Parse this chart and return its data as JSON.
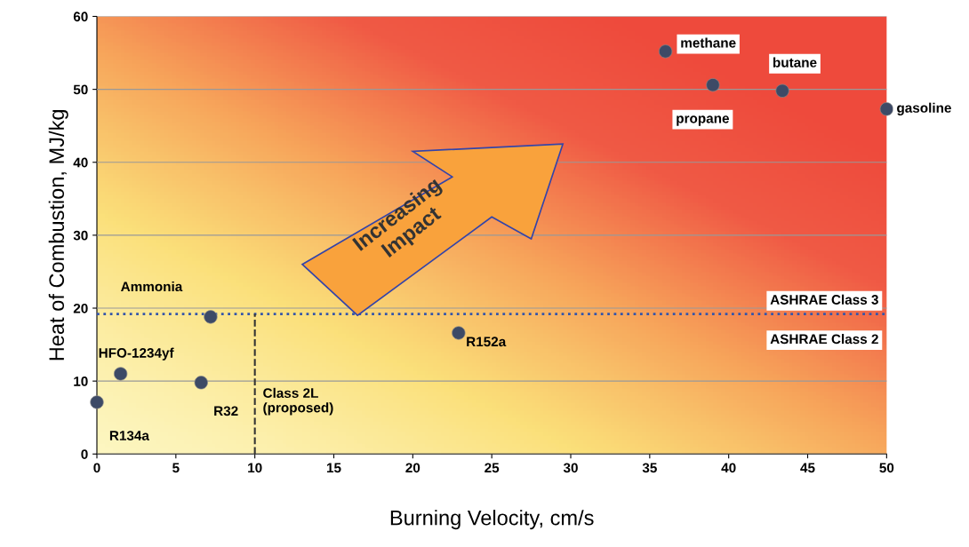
{
  "chart_data": {
    "type": "scatter",
    "xlabel": "Burning Velocity, cm/s",
    "ylabel": "Heat of Combustion, MJ/kg",
    "x": [
      36.0,
      39.0,
      43.4,
      50.0,
      7.2,
      1.5,
      6.6,
      0.0,
      22.9
    ],
    "series": [
      {
        "color": "#3d4a66",
        "values": [
          55.2,
          50.6,
          49.8,
          47.3,
          18.8,
          11.0,
          9.8,
          7.1,
          16.6
        ]
      }
    ],
    "xlim": [
      0,
      50
    ],
    "ylim": [
      0,
      60
    ],
    "xticks": [
      0,
      5,
      10,
      15,
      20,
      25,
      30,
      35,
      40,
      45,
      50
    ],
    "yticks": [
      0,
      10,
      20,
      30,
      40,
      50,
      60
    ],
    "grid": "y",
    "marker": "circle",
    "ref_lines": [
      {
        "axis": "y",
        "value": 19.2,
        "color": "#3355aa",
        "line_style": "dotted"
      },
      {
        "axis": "x",
        "value": 10,
        "color": "#333333",
        "line_style": "dashed"
      }
    ],
    "annotations": [
      {
        "text": "methane",
        "x": 36.0,
        "y": 55.2
      },
      {
        "text": "propane",
        "x": 39.0,
        "y": 50.6
      },
      {
        "text": "butane",
        "x": 43.4,
        "y": 49.8
      },
      {
        "text": "gasoline",
        "x": 50.0,
        "y": 47.3
      },
      {
        "text": "HFO-1234yf",
        "x": 1.5,
        "y": 11.0
      },
      {
        "text": "R32",
        "x": 6.6,
        "y": 9.8
      },
      {
        "text": "R134a",
        "x": 0.0,
        "y": 7.1
      },
      {
        "text": "R152a",
        "x": 22.9,
        "y": 16.6
      },
      "Ammonia",
      "ASHRAE Class 3",
      "ASHRAE Class 2",
      "Class 2L\n(proposed)",
      "Increasing\nImpact"
    ]
  }
}
